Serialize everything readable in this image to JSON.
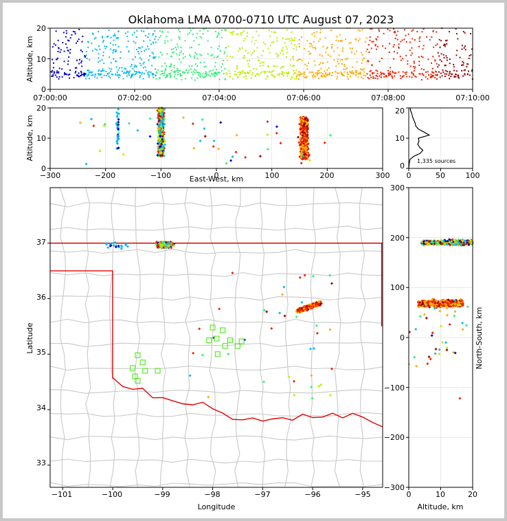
{
  "title": "Oklahoma LMA 0700-0710 UTC August 07, 2023",
  "colors": {
    "state_line": "#dd0000",
    "county_line": "#c8c8c8",
    "station": "#55ee22",
    "time_scale": [
      "#0000cc",
      "#00bbee",
      "#33ee77",
      "#bbee00",
      "#ffaa00",
      "#ee2200",
      "#990000"
    ]
  },
  "chart_data": [
    {
      "id": "time_height",
      "type": "scatter",
      "ylabel": "Altitude, km",
      "xlabel": "",
      "ylim": [
        0,
        20
      ],
      "xlim_minutes": [
        0,
        10
      ],
      "x_ticks": [
        "07:00:00",
        "07:02:00",
        "07:04:00",
        "07:06:00",
        "07:08:00",
        "07:10:00"
      ],
      "y_ticks": [
        "0",
        "10",
        "20"
      ],
      "grid": true
    },
    {
      "id": "ew_altitude",
      "type": "scatter",
      "xlabel": "East-West, km",
      "ylabel": "Altitude, km",
      "xlim": [
        -300,
        300
      ],
      "ylim": [
        0,
        20
      ],
      "x_ticks": [
        "−300",
        "−200",
        "−100",
        "0",
        "100",
        "200",
        "300"
      ],
      "y_ticks": [
        "0",
        "10",
        "20"
      ],
      "clusters": [
        {
          "x_center": -100,
          "x_spread": 8,
          "alt_range": [
            4,
            20
          ]
        },
        {
          "x_center": 158,
          "x_spread": 10,
          "alt_range": [
            3,
            17
          ]
        },
        {
          "x_center": -178,
          "x_spread": 3,
          "alt_range": [
            6,
            20
          ]
        }
      ]
    },
    {
      "id": "altitude_histogram",
      "type": "line",
      "xlim": [
        0,
        100
      ],
      "ylim": [
        0,
        20
      ],
      "x_ticks": [
        "0",
        "50",
        "100"
      ],
      "y_ticks": [
        "0",
        "10",
        "20"
      ],
      "annotation": "1,335 sources",
      "profile": [
        [
          0,
          0
        ],
        [
          1,
          2
        ],
        [
          2,
          3
        ],
        [
          8,
          4
        ],
        [
          18,
          5
        ],
        [
          22,
          6
        ],
        [
          17,
          7
        ],
        [
          14,
          8
        ],
        [
          16,
          9
        ],
        [
          15,
          10
        ],
        [
          32,
          11
        ],
        [
          24,
          12
        ],
        [
          15,
          13
        ],
        [
          11,
          14
        ],
        [
          10,
          15
        ],
        [
          8,
          16
        ],
        [
          6,
          17
        ],
        [
          5,
          18
        ],
        [
          3,
          19
        ],
        [
          2,
          20
        ]
      ]
    },
    {
      "id": "plan_view",
      "type": "scatter",
      "xlabel": "Longitude",
      "ylabel": "Latitude",
      "xlim": [
        -101.25,
        -94.6
      ],
      "ylim": [
        32.6,
        38.0
      ],
      "x_ticks": [
        "−101",
        "−100",
        "−99",
        "−98",
        "−97",
        "−96",
        "−95"
      ],
      "y_ticks": [
        "33",
        "34",
        "35",
        "36",
        "37"
      ],
      "stations": [
        [
          -98.0,
          35.48
        ],
        [
          -97.8,
          35.43
        ],
        [
          -98.07,
          35.25
        ],
        [
          -97.92,
          35.28
        ],
        [
          -97.75,
          35.15
        ],
        [
          -97.65,
          35.25
        ],
        [
          -97.5,
          35.15
        ],
        [
          -97.42,
          35.23
        ],
        [
          -97.9,
          35.0
        ],
        [
          -99.1,
          34.7
        ],
        [
          -99.4,
          34.85
        ],
        [
          -99.35,
          34.7
        ],
        [
          -99.5,
          34.98
        ],
        [
          -99.6,
          34.75
        ],
        [
          -99.55,
          34.6
        ],
        [
          -99.5,
          34.52
        ]
      ]
    },
    {
      "id": "ns_altitude",
      "type": "scatter",
      "xlabel": "Altitude, km",
      "ylabel": "North-South, km",
      "xlim": [
        0,
        20
      ],
      "ylim": [
        -300,
        300
      ],
      "x_ticks": [
        "0",
        "10",
        "20"
      ],
      "y_ticks": [
        "−300",
        "−200",
        "−100",
        "0",
        "100",
        "200",
        "300"
      ]
    }
  ]
}
